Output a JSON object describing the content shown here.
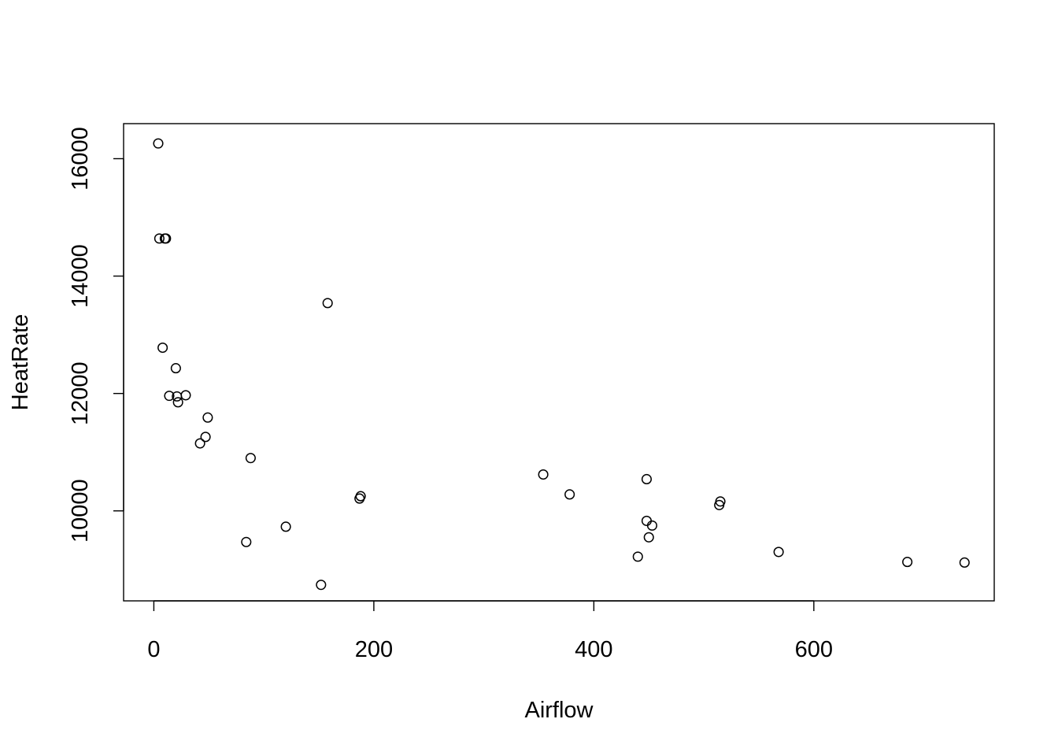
{
  "chart_data": {
    "type": "scatter",
    "title": "",
    "xlabel": "Airflow",
    "ylabel": "HeatRate",
    "xlim": [
      -27.5,
      764
    ],
    "ylim": [
      8467,
      16597
    ],
    "x_ticks": [
      0,
      200,
      400,
      600
    ],
    "x_tick_labels": [
      "0",
      "200",
      "400",
      "600"
    ],
    "y_ticks": [
      10000,
      12000,
      14000,
      16000
    ],
    "y_tick_labels": [
      "10000",
      "12000",
      "14000",
      "16000"
    ],
    "point_style": "open-circle",
    "colors": {
      "points": "#000000",
      "axes": "#000000",
      "background": "#ffffff"
    },
    "points": [
      {
        "x": 4,
        "y": 16260
      },
      {
        "x": 5,
        "y": 14640
      },
      {
        "x": 10,
        "y": 14640
      },
      {
        "x": 11,
        "y": 14640
      },
      {
        "x": 8,
        "y": 12780
      },
      {
        "x": 20,
        "y": 12430
      },
      {
        "x": 14,
        "y": 11960
      },
      {
        "x": 21,
        "y": 11950
      },
      {
        "x": 29,
        "y": 11970
      },
      {
        "x": 22,
        "y": 11850
      },
      {
        "x": 49,
        "y": 11590
      },
      {
        "x": 47,
        "y": 11260
      },
      {
        "x": 42,
        "y": 11150
      },
      {
        "x": 88,
        "y": 10900
      },
      {
        "x": 84,
        "y": 9470
      },
      {
        "x": 120,
        "y": 9730
      },
      {
        "x": 152,
        "y": 8740
      },
      {
        "x": 158,
        "y": 13540
      },
      {
        "x": 188,
        "y": 10250
      },
      {
        "x": 187,
        "y": 10210
      },
      {
        "x": 354,
        "y": 10620
      },
      {
        "x": 378,
        "y": 10280
      },
      {
        "x": 448,
        "y": 10540
      },
      {
        "x": 448,
        "y": 9830
      },
      {
        "x": 453,
        "y": 9750
      },
      {
        "x": 450,
        "y": 9550
      },
      {
        "x": 440,
        "y": 9220
      },
      {
        "x": 515,
        "y": 10160
      },
      {
        "x": 514,
        "y": 10100
      },
      {
        "x": 568,
        "y": 9300
      },
      {
        "x": 685,
        "y": 9130
      },
      {
        "x": 737,
        "y": 9120
      }
    ]
  }
}
